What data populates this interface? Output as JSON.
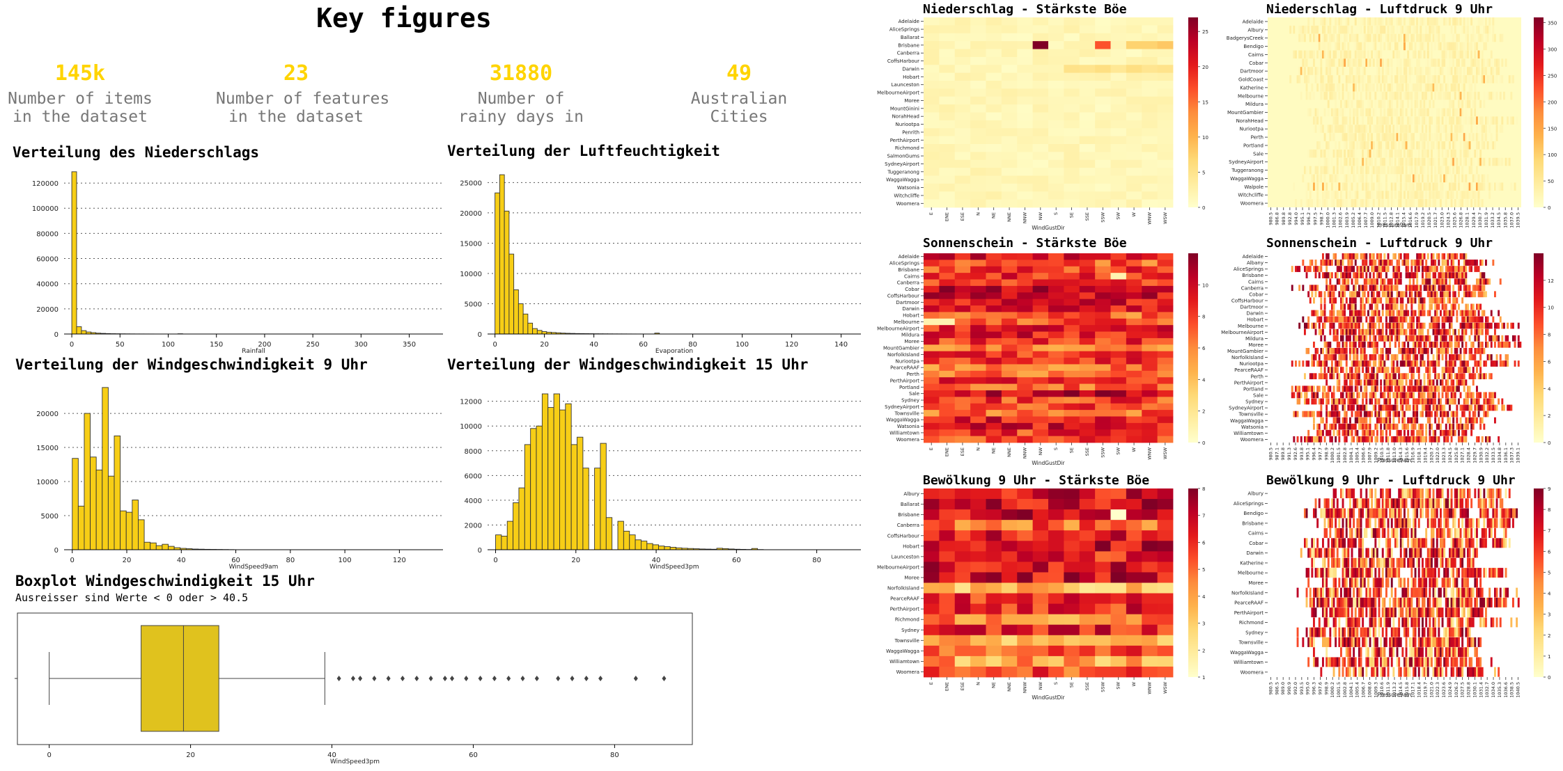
{
  "title": "Key figures",
  "kpis": [
    {
      "value": "145k",
      "label": "Number of items\nin the dataset"
    },
    {
      "value": "23",
      "label": "Number of features\nin the dataset"
    },
    {
      "value": "31880",
      "label": "Number of\nrainy days in"
    },
    {
      "value": "49",
      "label": "Australian\nCities"
    }
  ],
  "colors": {
    "bar": "#F7CE16",
    "bar_edge": "#333333",
    "kpi": "#FFD400",
    "box": "#E0C21E"
  },
  "chart_data": [
    {
      "type": "bar",
      "title": "Verteilung des Niederschlags",
      "xlabel": "Rainfall",
      "ylabel": "",
      "xlim": [
        -8,
        385
      ],
      "ylim": [
        0,
        130000
      ],
      "xticks": [
        0,
        50,
        100,
        150,
        200,
        250,
        300,
        350
      ],
      "yticks": [
        0,
        20000,
        40000,
        60000,
        80000,
        100000,
        120000
      ],
      "bin_width": 5,
      "bins": [
        0,
        5,
        10,
        15,
        20,
        25,
        30,
        35,
        40,
        45,
        50,
        55,
        60,
        65,
        70,
        75,
        80,
        85,
        90,
        95,
        100,
        105,
        110
      ],
      "values": [
        129000,
        5800,
        2700,
        1600,
        1100,
        700,
        500,
        350,
        250,
        200,
        150,
        120,
        90,
        70,
        60,
        50,
        40,
        30,
        25,
        20,
        15,
        12,
        200
      ],
      "grid": "y-dotted"
    },
    {
      "type": "bar",
      "title": "Verteilung der Luftfeuchtigkeit",
      "xlabel": "Evaporation",
      "ylabel": "",
      "xlim": [
        -3,
        148
      ],
      "ylim": [
        0,
        27000
      ],
      "xticks": [
        0,
        20,
        40,
        60,
        80,
        100,
        120,
        140
      ],
      "yticks": [
        0,
        5000,
        10000,
        15000,
        20000,
        25000
      ],
      "bin_width": 1.9,
      "bins": [
        0,
        1.9,
        3.8,
        5.7,
        7.6,
        9.5,
        11.4,
        13.3,
        15.2,
        17.1,
        19,
        20.9,
        22.8,
        24.7,
        26.6,
        28.5,
        30.4,
        32.3,
        34.2,
        36.1,
        38,
        39.9,
        41.8,
        43.7,
        45.6,
        47.5,
        49.4,
        51.3,
        53.2,
        55.1,
        57,
        58.9,
        60.8,
        62.7,
        64.6
      ],
      "values": [
        23300,
        26300,
        20300,
        13200,
        7300,
        5000,
        3300,
        1800,
        900,
        600,
        400,
        300,
        250,
        200,
        150,
        120,
        100,
        80,
        70,
        60,
        50,
        40,
        35,
        30,
        25,
        20,
        18,
        15,
        12,
        10,
        8,
        6,
        5,
        4,
        150
      ],
      "grid": "y-dotted"
    },
    {
      "type": "bar",
      "title": "Verteilung der Windgeschwindigkeit 9 Uhr",
      "xlabel": "WindSpeed9am",
      "ylabel": "",
      "xlim": [
        -3,
        136
      ],
      "ylim": [
        0,
        24500
      ],
      "xticks": [
        0,
        20,
        40,
        60,
        80,
        100,
        120
      ],
      "yticks": [
        0,
        5000,
        10000,
        15000,
        20000
      ],
      "bin_width": 2.2,
      "bins": [
        0,
        2.2,
        4.4,
        6.6,
        8.8,
        11,
        13.2,
        15.4,
        17.6,
        19.8,
        22,
        24.2,
        26.4,
        28.6,
        30.8,
        33,
        35.2,
        37.4,
        39.6,
        41.8,
        44,
        46.2,
        48.4,
        50.6,
        52.8,
        55,
        57.2
      ],
      "values": [
        13400,
        6400,
        20000,
        13600,
        11700,
        23800,
        10800,
        16700,
        5700,
        5500,
        7300,
        4400,
        1100,
        1000,
        600,
        800,
        500,
        300,
        200,
        150,
        100,
        80,
        60,
        50,
        40,
        30,
        20
      ],
      "grid": "y-dotted"
    },
    {
      "type": "bar",
      "title": "Verteilung der Windgeschwindigkeit 15 Uhr",
      "xlabel": "WindSpeed3pm",
      "ylabel": "",
      "xlim": [
        -2,
        91
      ],
      "ylim": [
        0,
        13500
      ],
      "xticks": [
        0,
        20,
        40,
        60,
        80
      ],
      "yticks": [
        0,
        2000,
        4000,
        6000,
        8000,
        10000,
        12000
      ],
      "bin_width": 1.45,
      "bins": [
        0,
        1.45,
        2.9,
        4.35,
        5.8,
        7.25,
        8.7,
        10.15,
        11.6,
        13.05,
        14.5,
        15.95,
        17.4,
        18.85,
        20.3,
        21.75,
        23.2,
        24.65,
        26.1,
        27.55,
        29,
        30.45,
        31.9,
        33.35,
        34.8,
        36.25,
        37.7,
        39.15,
        40.6,
        42.05,
        43.5,
        44.95,
        46.4,
        47.85,
        49.3,
        50.75,
        52.2,
        53.65,
        55.1,
        56.55,
        58,
        59.45,
        60.9,
        62.35,
        63.8,
        65.25
      ],
      "values": [
        1200,
        1100,
        2300,
        3800,
        5000,
        8500,
        9800,
        10000,
        12600,
        11500,
        12600,
        11300,
        11800,
        8500,
        9100,
        6600,
        0,
        6600,
        8600,
        2600,
        0,
        2300,
        1500,
        1200,
        800,
        700,
        500,
        400,
        300,
        250,
        200,
        150,
        120,
        100,
        80,
        60,
        50,
        40,
        120,
        90,
        60,
        40,
        30,
        20,
        100,
        15
      ],
      "grid": "y-dotted"
    },
    {
      "type": "box",
      "title": "Boxplot Windgeschwindigkeit 15 Uhr",
      "subtitle": "Ausreisser sind Werte < 0 oder > 40.5",
      "xlabel": "WindSpeed3pm",
      "xlim": [
        -4.5,
        91
      ],
      "xticks": [
        0,
        20,
        40,
        60,
        80
      ],
      "whisker_low": 0,
      "q1": 13,
      "median": 19,
      "q3": 24,
      "whisker_high": 39,
      "outliers": [
        41,
        43,
        44,
        46,
        48,
        50,
        52,
        54,
        56,
        57,
        59,
        61,
        63,
        65,
        67,
        69,
        72,
        74,
        76,
        78,
        83,
        87
      ]
    },
    {
      "type": "heatmap",
      "title": "Niederschlag - Stärkste Böe",
      "xlabel": "WindGustDir",
      "x": [
        "E",
        "ENE",
        "ESE",
        "N",
        "NE",
        "NNE",
        "NNW",
        "NW",
        "S",
        "SE",
        "SSE",
        "SSW",
        "SW",
        "W",
        "WNW",
        "WSW"
      ],
      "y": [
        "Adelaide",
        "AliceSprings",
        "Ballarat",
        "Brisbane",
        "Canberra",
        "CoffsHarbour",
        "Darwin",
        "Hobart",
        "Launceston",
        "MelbourneAirport",
        "Moree",
        "MountGinini",
        "NorahHead",
        "Nuriootpa",
        "Penrith",
        "PerthAirport",
        "Richmond",
        "SalmonGums",
        "SydneyAirport",
        "Tuggeranong",
        "WaggaWagga",
        "Watsonia",
        "Witchcliffe",
        "Woomera"
      ],
      "colorbar_ticks": [
        0,
        5,
        10,
        15,
        20,
        25
      ],
      "colormap": "YlOrRd",
      "vmax": 27
    },
    {
      "type": "heatmap",
      "title": "Niederschlag - Luftdruck 9 Uhr",
      "xlabel": "Pressure9am",
      "x": [
        "980.5",
        "986.8",
        "989.8",
        "992.8",
        "994.0",
        "995.1",
        "996.2",
        "997.5",
        "998.7",
        "1000.0",
        "1001.3",
        "1002.6",
        "1003.9",
        "1005.2",
        "1006.4",
        "1007.7",
        "1009.0",
        "1010.2",
        "1011.5",
        "1012.8",
        "1014.1",
        "1015.4",
        "1016.6",
        "1017.9",
        "1019.2",
        "1020.5",
        "1021.7",
        "1023.0",
        "1024.3",
        "1025.6",
        "1026.8",
        "1028.1",
        "1029.4",
        "1030.7",
        "1031.9",
        "1033.2",
        "1034.5",
        "1035.8",
        "1037.0",
        "1039.5"
      ],
      "y": [
        "Adelaide",
        "Albury",
        "BadgerysCreek",
        "Bendigo",
        "Cairns",
        "Cobar",
        "Dartmoor",
        "GoldCoast",
        "Katherine",
        "Melbourne",
        "Mildura",
        "MountGambier",
        "NorahHead",
        "Nuriootpa",
        "Perth",
        "Portland",
        "Sale",
        "SydneyAirport",
        "Tuggeranong",
        "WaggaWagga",
        "Walpole",
        "Witchcliffe",
        "Woomera"
      ],
      "colorbar_ticks": [
        0,
        50,
        100,
        150,
        200,
        250,
        300,
        350
      ],
      "colormap": "YlOrRd",
      "vmax": 360
    },
    {
      "type": "heatmap",
      "title": "Sonnenschein - Stärkste Böe",
      "xlabel": "WindGustDir",
      "x": [
        "E",
        "ENE",
        "ESE",
        "N",
        "NE",
        "NNE",
        "NNW",
        "NW",
        "S",
        "SE",
        "SSE",
        "SSW",
        "SW",
        "W",
        "WNW",
        "WSW"
      ],
      "y": [
        "Adelaide",
        "AliceSprings",
        "Brisbane",
        "Cairns",
        "Canberra",
        "Cobar",
        "CoffsHarbour",
        "Dartmoor",
        "Darwin",
        "Hobart",
        "Melbourne",
        "MelbourneAirport",
        "Mildura",
        "Moree",
        "MountGambier",
        "NorfolkIsland",
        "Nuriootpa",
        "PearceRAAF",
        "Perth",
        "PerthAirport",
        "Portland",
        "Sale",
        "Sydney",
        "SydneyAirport",
        "Townsville",
        "WaggaWagga",
        "Watsonia",
        "Williamtown",
        "Woomera"
      ],
      "colorbar_ticks": [
        0,
        2,
        4,
        6,
        8,
        10
      ],
      "colormap": "YlOrRd",
      "vmax": 12
    },
    {
      "type": "heatmap",
      "title": "Sonnenschein - Luftdruck 9 Uhr",
      "xlabel": "Pressure9am",
      "x": [
        "980.5",
        "987.1",
        "989.8",
        "991.3",
        "992.6",
        "993.8",
        "995.1",
        "996.4",
        "997.7",
        "998.9",
        "1000.2",
        "1001.5",
        "1002.8",
        "1004.1",
        "1005.4",
        "1006.6",
        "1007.9",
        "1009.2",
        "1010.5",
        "1011.8",
        "1013.0",
        "1014.3",
        "1015.6",
        "1016.9",
        "1018.1",
        "1019.4",
        "1020.7",
        "1022.0",
        "1023.3",
        "1024.5",
        "1025.8",
        "1027.1",
        "1028.4",
        "1029.7",
        "1030.9",
        "1032.2",
        "1033.5",
        "1034.8",
        "1036.1",
        "1037.3",
        "1039.1"
      ],
      "y": [
        "Adelaide",
        "Albany",
        "AliceSprings",
        "Brisbane",
        "Cairns",
        "Canberra",
        "Cobar",
        "CoffsHarbour",
        "Dartmoor",
        "Darwin",
        "Hobart",
        "Melbourne",
        "MelbourneAirport",
        "Mildura",
        "Moree",
        "MountGambier",
        "NorfolkIsland",
        "Nuriootpa",
        "PearceRAAF",
        "Perth",
        "PerthAirport",
        "Portland",
        "Sale",
        "Sydney",
        "SydneyAirport",
        "Townsville",
        "WaggaWagga",
        "Watsonia",
        "Williamtown",
        "Woomera"
      ],
      "colorbar_ticks": [
        0,
        2,
        4,
        6,
        8,
        10,
        12
      ],
      "colormap": "YlOrRd",
      "vmax": 14
    },
    {
      "type": "heatmap",
      "title": "Bewölkung 9 Uhr - Stärkste Böe",
      "xlabel": "WindGustDir",
      "x": [
        "E",
        "ENE",
        "ESE",
        "N",
        "NE",
        "NNE",
        "NNW",
        "NW",
        "S",
        "SE",
        "SSE",
        "SSW",
        "SW",
        "W",
        "WNW",
        "WSW"
      ],
      "y": [
        "Albury",
        "Ballarat",
        "Brisbane",
        "Canberra",
        "CoffsHarbour",
        "Hobart",
        "Launceston",
        "MelbourneAirport",
        "Moree",
        "NorfolkIsland",
        "PearceRAAF",
        "PerthAirport",
        "Richmond",
        "Sydney",
        "Townsville",
        "WaggaWagga",
        "Williamtown",
        "Woomera"
      ],
      "colorbar_ticks": [
        1,
        2,
        3,
        4,
        5,
        6,
        7,
        8
      ],
      "colormap": "YlOrRd",
      "vmin": 1,
      "vmax": 8
    },
    {
      "type": "heatmap",
      "title": "Bewölkung 9 Uhr - Luftdruck 9 Uhr",
      "xlabel": "Pressure9am",
      "x": [
        "980.5",
        "986.5",
        "989.0",
        "990.9",
        "992.0",
        "993.5",
        "995.0",
        "996.3",
        "997.6",
        "998.9",
        "1000.2",
        "1001.5",
        "1002.8",
        "1004.1",
        "1005.4",
        "1006.7",
        "1008.0",
        "1009.3",
        "1010.6",
        "1011.9",
        "1013.2",
        "1014.5",
        "1015.8",
        "1017.1",
        "1018.4",
        "1019.7",
        "1021.0",
        "1022.3",
        "1023.6",
        "1024.9",
        "1026.2",
        "1027.5",
        "1028.8",
        "1030.1",
        "1031.4",
        "1032.7",
        "1034.0",
        "1035.3",
        "1036.6",
        "1038.5",
        "1040.5"
      ],
      "y": [
        "Albury",
        "AliceSprings",
        "Bendigo",
        "Brisbane",
        "Cairns",
        "Cobar",
        "Darwin",
        "Katherine",
        "Melbourne",
        "Moree",
        "NorfolkIsland",
        "PearceRAAF",
        "PerthAirport",
        "Richmond",
        "Sydney",
        "Townsville",
        "WaggaWagga",
        "Williamtown",
        "Woomera"
      ],
      "colorbar_ticks": [
        0,
        1,
        2,
        3,
        4,
        5,
        6,
        7,
        8,
        9
      ],
      "colormap": "YlOrRd",
      "vmax": 9
    }
  ]
}
